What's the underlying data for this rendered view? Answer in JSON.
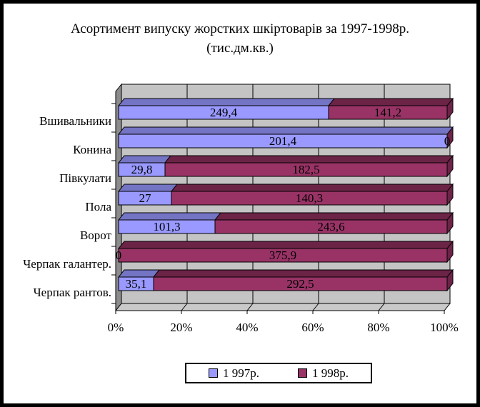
{
  "colors": {
    "background": "#FFFFFF",
    "frame_border": "#000000",
    "back_wall": "#C4C4C4",
    "side_wall": "#8C8C8C",
    "floor": "#C9C9C9",
    "axis_and_grid": "#000000",
    "text": "#000000"
  },
  "chart_data": {
    "type": "bar",
    "variant": "horizontal-stacked-100percent-3d",
    "title": "Асортимент випуску жорстких шкіртоварів за 1997-1998р.",
    "subtitle": "(тис.дм.кв.)",
    "categories": [
      "Вшивальники",
      "Конина",
      "Півкулати",
      "Пола",
      "Ворот",
      "Черпак галантер.",
      "Черпак рантов."
    ],
    "series": [
      {
        "name": "1 997р.",
        "values": [
          249.4,
          201.4,
          29.8,
          27,
          101.3,
          0,
          35.1
        ],
        "labels": [
          "249,4",
          "201,4",
          "29,8",
          "27",
          "101,3",
          "0",
          "35,1"
        ],
        "color": "#9999FF",
        "color_dark": "#7474C4"
      },
      {
        "name": "1 998р.",
        "values": [
          141.2,
          0,
          182.5,
          140.3,
          243.6,
          375.9,
          292.5
        ],
        "labels": [
          "141,2",
          "0",
          "182,5",
          "140,3",
          "243,6",
          "375,9",
          "292,5"
        ],
        "color": "#993366",
        "color_dark": "#6B2346"
      }
    ],
    "x_axis": {
      "ticks": [
        "0%",
        "20%",
        "40%",
        "60%",
        "80%",
        "100%"
      ],
      "min": 0,
      "max": 100,
      "unit": "percent of category total"
    },
    "grid": true,
    "legend_position": "bottom"
  }
}
